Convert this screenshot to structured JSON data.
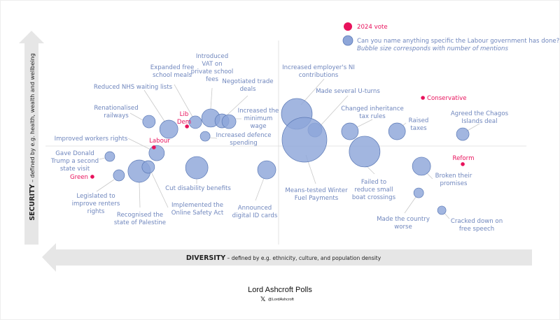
{
  "chart_data": {
    "type": "scatter",
    "subtype": "bubble",
    "xlabel_bold": "DIVERSITY",
    "xlabel_rest": " – defined by e.g. ethnicity, culture, and population density",
    "ylabel_bold": "SECURITY",
    "ylabel_rest": " – defined by e.g. health, wealth and wellbeing",
    "xlim": [
      -100,
      100
    ],
    "ylim": [
      -100,
      100
    ],
    "grid": false,
    "legend": {
      "placement": "top-right",
      "vote_label": "2024 vote",
      "bubble_label_line1": "Can you name anything specific the Labour government has done?",
      "bubble_label_line2": "Bubble size corresponds with number of mentions"
    },
    "bubbles": [
      {
        "label": "Renationalised\nrailways",
        "x": -55.6,
        "y": 23.3,
        "mentions": 81
      },
      {
        "label": "Reduced NHS waiting lists",
        "x": -47.1,
        "y": 16.0,
        "mentions": 169
      },
      {
        "label": "Expanded free\nschool meals",
        "x": -35.7,
        "y": 22.7,
        "mentions": 81
      },
      {
        "label": "Introduced\nVAT on\nprivate school\nfees",
        "x": -29.1,
        "y": 26.7,
        "mentions": 169
      },
      {
        "label": "Negotiated trade\ndeals",
        "x": -24.3,
        "y": 24.0,
        "mentions": 100
      },
      {
        "label": "Increased the\nminimum\nwage",
        "x": -21.3,
        "y": 23.3,
        "mentions": 100
      },
      {
        "label": "Increased defence\nspending",
        "x": -31.5,
        "y": 9.3,
        "mentions": 49
      },
      {
        "label": "Improved workers rights",
        "x": -52.3,
        "y": -6.7,
        "mentions": 121
      },
      {
        "label": "Gave Donald\nTrump a second\nstate visit",
        "x": -72.4,
        "y": -10.0,
        "mentions": 49
      },
      {
        "label": "Legislated to\nimprove renters\nrights",
        "x": -68.5,
        "y": -28.0,
        "mentions": 64
      },
      {
        "label": "Recognised the\nstate of Palestine",
        "x": -59.8,
        "y": -24.0,
        "mentions": 256
      },
      {
        "label": "Implemented the\nOnline Safety Act",
        "x": -55.9,
        "y": -20.0,
        "mentions": 81
      },
      {
        "label": "Cut disability benefits",
        "x": -35.1,
        "y": -20.7,
        "mentions": 256
      },
      {
        "label": "Announced\ndigital ID cards",
        "x": -5.1,
        "y": -22.7,
        "mentions": 169
      },
      {
        "label": "Increased employer's NI\ncontributions",
        "x": 7.8,
        "y": 30.7,
        "mentions": 484
      },
      {
        "label": "Made several U-turns",
        "x": 15.6,
        "y": 15.3,
        "mentions": 100
      },
      {
        "label": "Means-tested Winter\nFuel Payments",
        "x": 11.1,
        "y": 6.0,
        "mentions": 1024
      },
      {
        "label": "Changed inheritance\ntax rules",
        "x": 30.6,
        "y": 14.0,
        "mentions": 144
      },
      {
        "label": "Failed to\nreduce small\nboat crossings",
        "x": 36.9,
        "y": -5.3,
        "mentions": 484
      },
      {
        "label": "Raised\ntaxes",
        "x": 50.8,
        "y": 14.0,
        "mentions": 144
      },
      {
        "label": "Agreed the Chagos\nIslands deal",
        "x": 79.0,
        "y": 11.3,
        "mentions": 81
      },
      {
        "label": "Broken their\npromises",
        "x": 61.3,
        "y": -19.3,
        "mentions": 169
      },
      {
        "label": "Made the country\nworse",
        "x": 60.1,
        "y": -44.7,
        "mentions": 49
      },
      {
        "label": "Cracked down on\nfree speech",
        "x": 70.0,
        "y": -61.3,
        "mentions": 36
      }
    ],
    "parties": [
      {
        "label": "Lib\nDem",
        "x": -39.3,
        "y": 18.7
      },
      {
        "label": "Labour",
        "x": -53.5,
        "y": -1.3
      },
      {
        "label": "Green",
        "x": -79.9,
        "y": -29.3
      },
      {
        "label": "Conservative",
        "x": 61.9,
        "y": 46.0
      },
      {
        "label": "Reform",
        "x": 79.0,
        "y": -17.3
      }
    ]
  },
  "colors": {
    "bubble_fill": "#8ea6d9",
    "bubble_stroke": "#5a78b5",
    "label": "#6f86bd",
    "party": "#e8125c",
    "axis_arrow": "#e6e6e6"
  },
  "footer": {
    "brand": "Lord Ashcroft Polls",
    "handle": "@LordAshcroft",
    "handle_icon": "x-logo-icon"
  }
}
